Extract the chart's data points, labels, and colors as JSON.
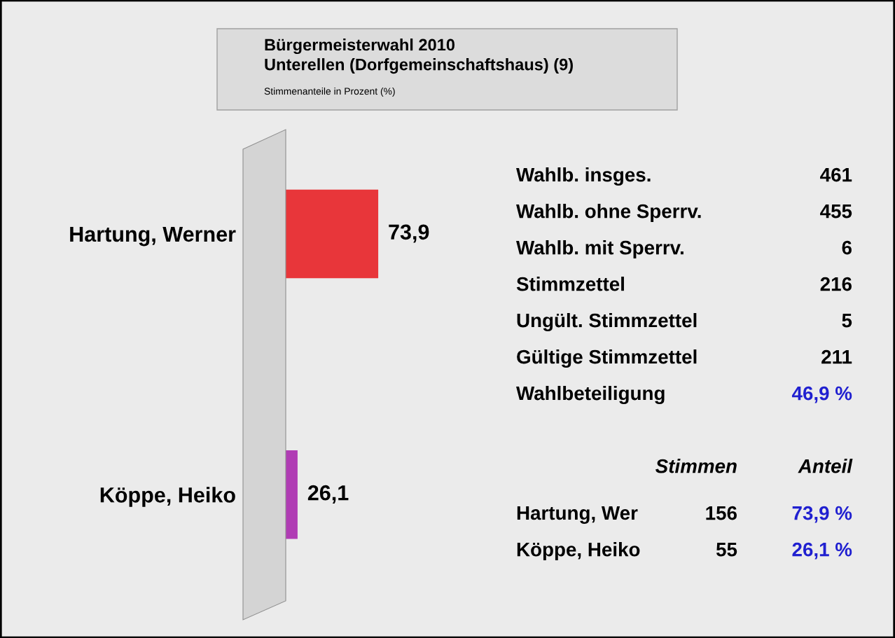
{
  "chart_data": [
    {
      "type": "bar",
      "orientation": "horizontal",
      "title": "Bürgermeisterwahl 2010\nUnterellen (Dorfgemeinschaftshaus) (9)",
      "subtitle": "Stimmenanteile in Prozent (%)",
      "categories": [
        "Hartung, Werner",
        "Köppe, Heiko"
      ],
      "values": [
        73.9,
        26.1
      ],
      "colors": [
        "#e8363a",
        "#b03cb4"
      ],
      "value_labels": [
        "73,9",
        "26,1"
      ],
      "tick_labels": "y",
      "grid": false,
      "legend": false
    },
    {
      "type": "other",
      "annotations": [
        "Wahlb. insges.",
        "461",
        "Wahlb. ohne Sperrv.",
        "455",
        "Wahlb. mit Sperrv.",
        "6",
        "Stimmzettel",
        "216",
        "Ungült. Stimmzettel",
        "5",
        "Gültige Stimmzettel",
        "211",
        "Wahlbeteiligung",
        "46,9 %",
        "Stimmen",
        "Anteil",
        "Hartung, Wer",
        "156",
        "73,9 %",
        "Köppe, Heiko",
        "55",
        "26,1 %"
      ]
    }
  ]
}
